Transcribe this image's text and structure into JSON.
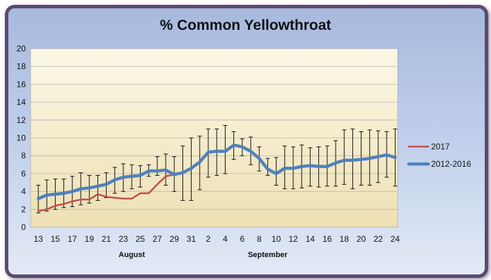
{
  "chart_data": {
    "type": "line",
    "title": "% Common Yellowthroat",
    "xlabel": "",
    "ylabel": "",
    "ylim": [
      0,
      20
    ],
    "yticks": [
      0,
      2,
      4,
      6,
      8,
      10,
      12,
      14,
      16,
      18,
      20
    ],
    "x_tick_labels": [
      "13",
      "15",
      "17",
      "19",
      "21",
      "23",
      "25",
      "27",
      "29",
      "31",
      "2",
      "4",
      "6",
      "8",
      "10",
      "12",
      "14",
      "16",
      "18",
      "20",
      "22",
      "24"
    ],
    "month_labels": [
      {
        "text": "August",
        "at_index": 11
      },
      {
        "text": "September",
        "at_index": 27
      }
    ],
    "grid": "horizontal",
    "background": "light yellow gradient",
    "legend_position": "right",
    "colors": {
      "2017": "#c0504d",
      "2012-2016": "#4f81bd",
      "error_bars": "#111111"
    },
    "series": [
      {
        "name": "2017",
        "values": [
          1.8,
          2.0,
          2.4,
          2.6,
          2.9,
          3.1,
          3.1,
          3.7,
          3.4,
          3.3,
          3.2,
          3.2,
          3.8,
          3.8,
          4.8,
          5.7,
          5.9
        ]
      },
      {
        "name": "2012-2016",
        "values": [
          3.2,
          3.6,
          3.7,
          3.8,
          4.0,
          4.3,
          4.4,
          4.6,
          4.8,
          5.3,
          5.6,
          5.7,
          5.8,
          6.3,
          6.3,
          6.4,
          5.9,
          6.1,
          6.6,
          7.3,
          8.4,
          8.5,
          8.5,
          9.2,
          9.0,
          8.5,
          7.7,
          6.5,
          6.0,
          6.6,
          6.6,
          6.8,
          6.9,
          6.8,
          6.8,
          7.2,
          7.5,
          7.5,
          7.6,
          7.7,
          7.9,
          8.1,
          7.8
        ],
        "error_low": [
          1.6,
          1.8,
          2.0,
          2.2,
          2.3,
          2.5,
          2.7,
          3.0,
          3.3,
          3.8,
          4.0,
          4.3,
          4.5,
          5.7,
          5.8,
          4.7,
          4.0,
          3.0,
          3.0,
          4.2,
          5.6,
          5.8,
          6.0,
          7.6,
          8.0,
          7.0,
          6.3,
          5.8,
          4.7,
          4.3,
          4.3,
          4.4,
          4.6,
          4.5,
          4.6,
          4.6,
          4.8,
          4.3,
          4.7,
          4.7,
          5.0,
          5.6,
          4.6
        ],
        "error_high": [
          4.7,
          5.3,
          5.4,
          5.4,
          5.7,
          6.1,
          5.8,
          5.8,
          6.1,
          6.7,
          7.1,
          7.0,
          6.9,
          7.0,
          7.9,
          8.2,
          7.9,
          9.1,
          10.0,
          10.2,
          11.0,
          11.0,
          11.4,
          10.7,
          9.9,
          10.1,
          9.0,
          7.7,
          7.8,
          9.1,
          9.0,
          9.2,
          8.9,
          9.0,
          9.1,
          9.7,
          10.9,
          11.0,
          10.7,
          10.9,
          10.8,
          10.7,
          11.0
        ]
      }
    ]
  }
}
